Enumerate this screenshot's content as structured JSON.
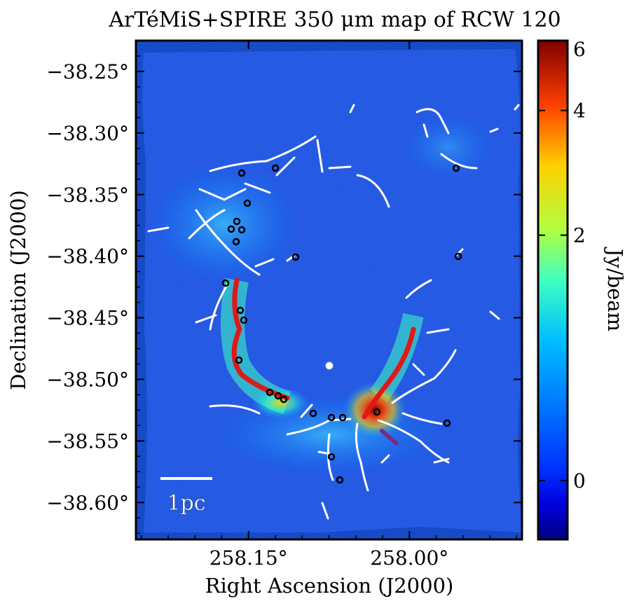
{
  "chart_data": {
    "type": "heatmap",
    "title": "ArTéMiS+SPIRE 350 μm map of RCW 120",
    "xlabel": "Right Ascension (J2000)",
    "ylabel": "Declination (J2000)",
    "x_ticks": [
      {
        "value": 258.15,
        "label": "258.15°"
      },
      {
        "value": 258.0,
        "label": "258.00°"
      }
    ],
    "xlim": [
      258.255,
      257.895
    ],
    "y_ticks": [
      {
        "value": -38.25,
        "label": "−38.25°"
      },
      {
        "value": -38.3,
        "label": "−38.30°"
      },
      {
        "value": -38.35,
        "label": "−38.35°"
      },
      {
        "value": -38.4,
        "label": "−38.40°"
      },
      {
        "value": -38.45,
        "label": "−38.45°"
      },
      {
        "value": -38.5,
        "label": "−38.50°"
      },
      {
        "value": -38.55,
        "label": "−38.55°"
      },
      {
        "value": -38.6,
        "label": "−38.60°"
      }
    ],
    "ylim": [
      -38.63,
      -38.225
    ],
    "colorbar": {
      "label": "Jy/beam",
      "ticks": [
        {
          "value": 0,
          "label": "0"
        },
        {
          "value": 2,
          "label": "2"
        },
        {
          "value": 4,
          "label": "4"
        },
        {
          "value": 6,
          "label": "6"
        }
      ],
      "min": -0.5,
      "max": 6,
      "scale": "nonlinear",
      "colormap": "jet"
    },
    "scale_bar": {
      "label": "1pc"
    },
    "colors": {
      "bright_ridge": "#e01818",
      "secondary_filament": "#7a2a80",
      "filaments": "#ffffff",
      "sources": "#000000"
    }
  }
}
